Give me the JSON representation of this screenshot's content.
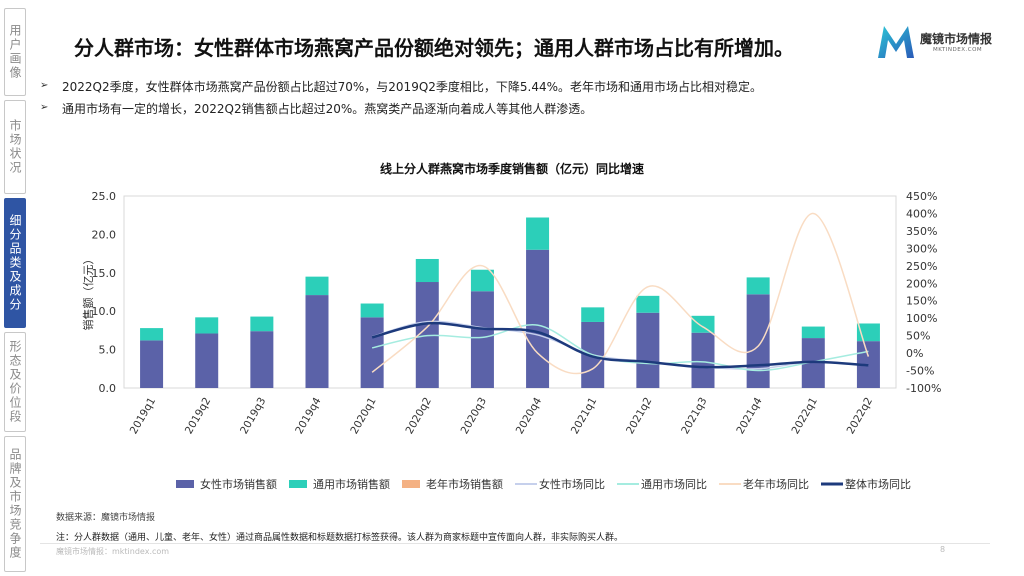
{
  "sidebar": {
    "items": [
      {
        "label": "用户画像",
        "active": false
      },
      {
        "label": "市场状况",
        "active": false
      },
      {
        "label": "细分品类及成分",
        "active": true
      },
      {
        "label": "形态及价位段",
        "active": false
      },
      {
        "label": "品牌及市场竞争度",
        "active": false
      }
    ]
  },
  "header": {
    "title": "分人群市场：女性群体市场燕窝产品份额绝对领先；通用人群市场占比有所增加。",
    "logo_text": "魔镜市场情报",
    "logo_sub": "MKTINDEX.COM"
  },
  "bullets": [
    "2022Q2季度，女性群体市场燕窝产品份额占比超过70%，与2019Q2季度相比，下降5.44%。老年市场和通用市场占比相对稳定。",
    "通用市场有一定的增长，2022Q2销售额占比超过20%。燕窝类产品逐渐向着成人等其他人群渗透。"
  ],
  "chart_data": {
    "type": "bar",
    "title": "线上分人群燕窝市场季度销售额（亿元）同比增速",
    "ylabel": "销售额（亿元）",
    "ylim": [
      0,
      25
    ],
    "yticks": [
      "25.0",
      "20.0",
      "15.0",
      "10.0",
      "5.0",
      "0.0"
    ],
    "y2lim": [
      -100,
      450
    ],
    "y2ticks": [
      "450%",
      "400%",
      "350%",
      "300%",
      "250%",
      "200%",
      "150%",
      "100%",
      "50%",
      "0%",
      "-50%",
      "-100%"
    ],
    "categories": [
      "2019q1",
      "2019q2",
      "2019q3",
      "2019q4",
      "2020q1",
      "2020q2",
      "2020q3",
      "2020q4",
      "2021q1",
      "2021q2",
      "2021q3",
      "2021q4",
      "2022q1",
      "2022q2"
    ],
    "stacked_series": [
      {
        "name": "女性市场销售额",
        "color": "#5b62a8",
        "values": [
          6.2,
          7.1,
          7.4,
          12.1,
          9.2,
          13.8,
          12.6,
          18.0,
          8.6,
          9.8,
          7.2,
          12.2,
          6.5,
          6.1
        ]
      },
      {
        "name": "通用市场销售额",
        "color": "#2ccfb9",
        "values": [
          1.6,
          2.1,
          1.9,
          2.4,
          1.8,
          3.0,
          2.8,
          4.2,
          1.9,
          2.2,
          2.2,
          2.2,
          1.5,
          2.3
        ]
      },
      {
        "name": "老年市场销售额",
        "color": "#f4b183",
        "values": [
          0,
          0,
          0,
          0,
          0,
          0,
          0,
          0,
          0,
          0,
          0,
          0,
          0,
          0
        ]
      }
    ],
    "line_series": [
      {
        "name": "女性市场同比",
        "color": "#c6d0ec",
        "width": 1.5,
        "values": [
          null,
          null,
          null,
          null,
          47,
          90,
          73,
          52,
          -5,
          -25,
          -40,
          -45,
          -25,
          -35
        ]
      },
      {
        "name": "通用市场同比",
        "color": "#a5ece0",
        "width": 1.5,
        "values": [
          null,
          null,
          null,
          null,
          15,
          50,
          45,
          80,
          -5,
          -30,
          -25,
          -50,
          -25,
          5
        ]
      },
      {
        "name": "老年市场同比",
        "color": "#f9dcc3",
        "width": 1.5,
        "values": [
          null,
          null,
          null,
          null,
          -55,
          75,
          250,
          0,
          -45,
          190,
          75,
          20,
          400,
          -10
        ]
      },
      {
        "name": "整体市场同比",
        "color": "#1d3a7c",
        "width": 2.5,
        "values": [
          null,
          null,
          null,
          null,
          45,
          85,
          70,
          60,
          -10,
          -25,
          -40,
          -35,
          -25,
          -35
        ]
      }
    ]
  },
  "footer": {
    "source": "数据来源：魔镜市场情报",
    "note": "注：分人群数据（通用、儿童、老年、女性）通过商品属性数据和标题数据打标签获得。该人群为商家标题中宣传面向人群，非实际购买人群。",
    "brand": "魔镜市场情报：mktindex.com",
    "page": "8"
  }
}
